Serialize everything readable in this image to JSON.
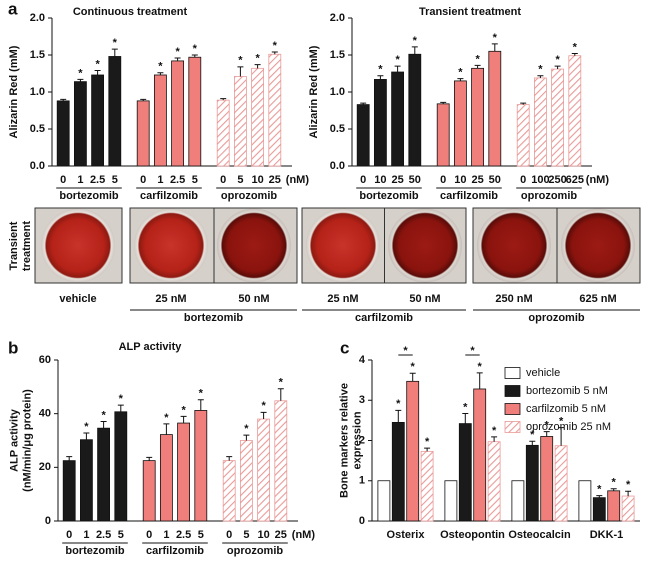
{
  "chart_data": [
    {
      "type": "bar",
      "panel": "a",
      "title": "Continuous treatment",
      "y_label": [
        "Alizarin Red (mM)"
      ],
      "x_unit": "(nM)",
      "ylim": [
        0,
        2
      ],
      "yticks": [
        {
          "value": 0,
          "label": "0.0"
        },
        0.5,
        {
          "value": 1,
          "label": "1.0"
        },
        1.5,
        {
          "value": 2,
          "label": "2.0"
        }
      ],
      "series": [
        {
          "name": "bortezomib",
          "color": "#1a1a1a",
          "hatch": false,
          "categories": [
            "0",
            "1",
            "2.5",
            "5"
          ],
          "values": [
            0.88,
            1.14,
            1.23,
            1.48
          ],
          "errors": [
            0.02,
            0.03,
            0.06,
            0.1
          ],
          "significance": [
            null,
            "*",
            "*",
            "*"
          ]
        },
        {
          "name": "carfilzomib",
          "color": "#f07f7b",
          "hatch": false,
          "categories": [
            "0",
            "1",
            "2.5",
            "5"
          ],
          "values": [
            0.88,
            1.23,
            1.42,
            1.47
          ],
          "errors": [
            0.02,
            0.03,
            0.04,
            0.03
          ],
          "significance": [
            null,
            "*",
            "*",
            "*"
          ]
        },
        {
          "name": "oprozomib",
          "color": "#e99a98",
          "hatch": true,
          "categories": [
            "0",
            "5",
            "10",
            "25"
          ],
          "values": [
            0.89,
            1.21,
            1.32,
            1.51
          ],
          "errors": [
            0.02,
            0.13,
            0.05,
            0.03
          ],
          "significance": [
            null,
            "*",
            "*",
            "*"
          ]
        }
      ]
    },
    {
      "type": "bar",
      "title": "Transient treatment",
      "y_label": [
        "Alizarin Red (mM)"
      ],
      "x_unit": "(nM)",
      "ylim": [
        0,
        2
      ],
      "yticks": [
        {
          "value": 0,
          "label": "0.0"
        },
        0.5,
        {
          "value": 1,
          "label": "1.0"
        },
        1.5,
        {
          "value": 2,
          "label": "2.0"
        }
      ],
      "series": [
        {
          "name": "bortezomib",
          "color": "#1a1a1a",
          "hatch": false,
          "categories": [
            "0",
            "10",
            "25",
            "50"
          ],
          "values": [
            0.83,
            1.17,
            1.27,
            1.51
          ],
          "errors": [
            0.02,
            0.05,
            0.08,
            0.1
          ],
          "significance": [
            null,
            "*",
            "*",
            "*"
          ]
        },
        {
          "name": "carfilzomib",
          "color": "#f07f7b",
          "hatch": false,
          "categories": [
            "0",
            "10",
            "25",
            "50"
          ],
          "values": [
            0.84,
            1.15,
            1.32,
            1.55
          ],
          "errors": [
            0.02,
            0.03,
            0.04,
            0.1
          ],
          "significance": [
            null,
            "*",
            "*",
            "*"
          ]
        },
        {
          "name": "oprozomib",
          "color": "#e99a98",
          "hatch": true,
          "categories": [
            "0",
            "100",
            "250",
            "625"
          ],
          "values": [
            0.83,
            1.19,
            1.31,
            1.49
          ],
          "errors": [
            0.02,
            0.03,
            0.04,
            0.03
          ],
          "significance": [
            null,
            "*",
            "*",
            "*"
          ]
        }
      ]
    },
    {
      "type": "bar",
      "panel": "b",
      "title": "ALP activity",
      "y_label": [
        "ALP activity",
        "(nM/min/μg protein)"
      ],
      "x_unit": "(nM)",
      "ylim": [
        0,
        60
      ],
      "yticks": [
        0,
        20,
        40,
        60
      ],
      "series": [
        {
          "name": "bortezomib",
          "color": "#1a1a1a",
          "hatch": false,
          "categories": [
            "0",
            "1",
            "2.5",
            "5"
          ],
          "values": [
            22.5,
            30.3,
            34.6,
            40.7
          ],
          "errors": [
            1.5,
            2.5,
            2.5,
            2.5
          ],
          "significance": [
            null,
            "*",
            "*",
            "*"
          ]
        },
        {
          "name": "carfilzomib",
          "color": "#f07f7b",
          "hatch": false,
          "categories": [
            "0",
            "1",
            "2.5",
            "5"
          ],
          "values": [
            22.5,
            32.2,
            36.5,
            41.2
          ],
          "errors": [
            1.2,
            4,
            2.5,
            4
          ],
          "significance": [
            null,
            "*",
            "*",
            "*"
          ]
        },
        {
          "name": "oprozomib",
          "color": "#e99a98",
          "hatch": true,
          "categories": [
            "0",
            "5",
            "10",
            "25"
          ],
          "values": [
            22.5,
            30,
            38,
            44.8
          ],
          "errors": [
            1.5,
            2,
            2.5,
            4.5
          ],
          "significance": [
            null,
            "*",
            "*",
            "*"
          ]
        }
      ]
    },
    {
      "type": "grouped_bar",
      "panel": "c",
      "y_label": [
        "Bone markers relative",
        "expression"
      ],
      "categories": [
        "Osterix",
        "Osteopontin",
        "Osteocalcin",
        "DKK-1"
      ],
      "ylim": [
        0,
        4
      ],
      "yticks": [
        0,
        1,
        2,
        3,
        4
      ],
      "legend": "upper right",
      "series": [
        {
          "name": "vehicle",
          "color": "#ffffff",
          "hatch": false,
          "values": [
            1,
            1,
            1,
            1
          ]
        },
        {
          "name": "bortezomib 5 nM",
          "color": "#1a1a1a",
          "hatch": false,
          "values": [
            2.45,
            2.42,
            1.88,
            0.58
          ],
          "errors": [
            0.3,
            0.25,
            0.1,
            0.05
          ],
          "significance": [
            "*",
            "*",
            "*",
            "*"
          ]
        },
        {
          "name": "carfilzomib 5 nM",
          "color": "#f07f7b",
          "hatch": false,
          "values": [
            3.47,
            3.28,
            2.1,
            0.75
          ],
          "errors": [
            0.2,
            0.4,
            0.12,
            0.05
          ],
          "significance": [
            "*",
            "*",
            "*",
            "*"
          ]
        },
        {
          "name": "oprozomib 25 nM",
          "color": "#e99a98",
          "hatch": true,
          "values": [
            1.73,
            1.97,
            1.87,
            0.62
          ],
          "errors": [
            0.08,
            0.12,
            0.45,
            0.12
          ],
          "significance": [
            "*",
            "*",
            "*",
            "*"
          ]
        }
      ],
      "bracket_significance": [
        "*",
        "*",
        null,
        null
      ]
    }
  ],
  "image_panel": {
    "side_label": [
      "Transient",
      "treatment"
    ],
    "wells": [
      "vehicle",
      "25 nM",
      "50 nM",
      "25 nM",
      "50 nM",
      "250 nM",
      "625 nM"
    ],
    "groups": [
      "bortezomib",
      "carfilzomib",
      "oprozomib"
    ]
  }
}
